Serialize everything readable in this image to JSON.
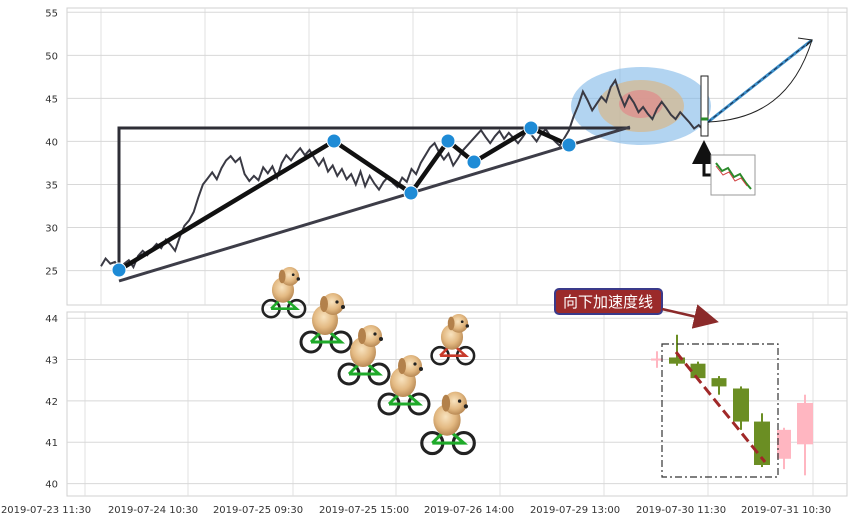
{
  "chart_data": [
    {
      "type": "line",
      "panel": "price",
      "ylim": [
        21,
        55.5
      ],
      "yticks": [
        25,
        30,
        35,
        40,
        45,
        50,
        55
      ],
      "grid": true,
      "series": [
        {
          "values": [
            25.5,
            26.4,
            25.8,
            26.0,
            25.1,
            25.8,
            26.2,
            25.4,
            26.7,
            27.3,
            26.8,
            27.5,
            28.1,
            27.6,
            28.6,
            28.0,
            27.3,
            28.9,
            30.2,
            30.8,
            31.8,
            33.5,
            35.0,
            35.7,
            36.4,
            35.6,
            36.9,
            37.8,
            38.3,
            37.6,
            38.1,
            36.2,
            35.4,
            36.0,
            35.5,
            37.0,
            36.3,
            37.1,
            35.8,
            37.5,
            38.4,
            37.8,
            38.6,
            39.2,
            38.4,
            39.0,
            38.1,
            37.2,
            38.0,
            36.5,
            37.2,
            36.0,
            36.8,
            35.6,
            36.2,
            35.0,
            36.5,
            34.8,
            36.0,
            35.1,
            34.4,
            35.3,
            35.9,
            35.2,
            34.7,
            35.8,
            35.3,
            36.8,
            36.2,
            37.5,
            38.4,
            39.3,
            39.8,
            38.7,
            37.9,
            38.6,
            37.2,
            38.0,
            38.9,
            39.5,
            40.1,
            40.7,
            41.3,
            40.5,
            39.8,
            40.6,
            41.2,
            40.3,
            41.0,
            40.4,
            39.8,
            40.5,
            41.3,
            40.7,
            40.0,
            40.9,
            41.4,
            40.6,
            40.0,
            39.5,
            40.4,
            41.3,
            42.9,
            44.2,
            45.8,
            44.8,
            43.6,
            44.4,
            45.2,
            44.6,
            46.3,
            47.1,
            45.4,
            44.1,
            45.3,
            44.5,
            43.4,
            44.0,
            43.2,
            42.6,
            43.8,
            44.6,
            43.9,
            43.1,
            42.6,
            43.4,
            42.8,
            42.2,
            41.5,
            41.9,
            41.3,
            42.0
          ]
        }
      ]
    },
    {
      "type": "candlestick",
      "panel": "volume-candles",
      "ylim": [
        39.7,
        44.15
      ],
      "yticks": [
        40,
        41,
        42,
        43,
        44
      ],
      "grid": true,
      "xtick_labels": [
        "2019-07-23 11:30",
        "2019-07-24 10:30",
        "2019-07-25 09:30",
        "2019-07-25 15:00",
        "2019-07-26 14:00",
        "2019-07-29 13:00",
        "2019-07-30 11:30",
        "2019-07-31 10:30"
      ],
      "candles": [
        {
          "open": 43.0,
          "close": 43.0,
          "high": 43.2,
          "low": 42.8,
          "color": "pink"
        },
        {
          "open": 43.05,
          "close": 42.9,
          "high": 43.6,
          "low": 42.85,
          "color": "green"
        },
        {
          "open": 42.9,
          "close": 42.55,
          "high": 42.95,
          "low": 42.5,
          "color": "green"
        },
        {
          "open": 42.55,
          "close": 42.35,
          "high": 42.6,
          "low": 42.15,
          "color": "green"
        },
        {
          "open": 42.3,
          "close": 41.5,
          "high": 42.35,
          "low": 41.3,
          "color": "green"
        },
        {
          "open": 41.5,
          "close": 40.45,
          "high": 41.7,
          "low": 40.4,
          "color": "green"
        },
        {
          "open": 40.6,
          "close": 41.3,
          "high": 41.35,
          "low": 40.35,
          "color": "pink"
        },
        {
          "open": 40.95,
          "close": 41.95,
          "high": 42.15,
          "low": 40.2,
          "color": "pink"
        }
      ],
      "annotations": [
        {
          "text": "向下加速度线"
        }
      ]
    }
  ]
}
